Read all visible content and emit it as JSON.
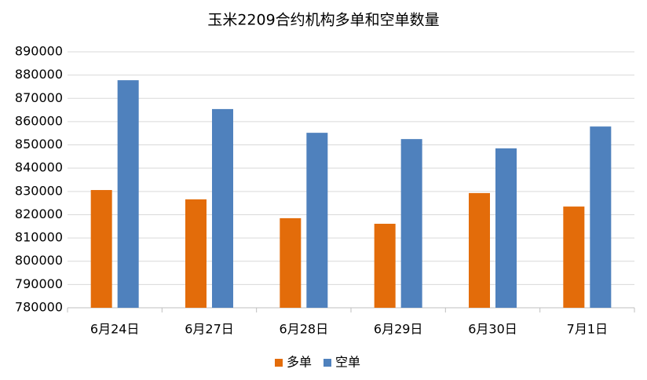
{
  "chart_data": {
    "type": "bar",
    "title": "玉米2209合约机构多单和空单数量",
    "categories": [
      "6月24日",
      "6月27日",
      "6月28日",
      "6月29日",
      "6月30日",
      "7月1日"
    ],
    "series": [
      {
        "name": "多单",
        "color": "#e36c0a",
        "values": [
          830600,
          826600,
          818500,
          816100,
          829300,
          823500
        ]
      },
      {
        "name": "空单",
        "color": "#4f81bd",
        "values": [
          877800,
          865400,
          855200,
          852500,
          848500,
          857900
        ]
      }
    ],
    "ylim": [
      780000,
      890000
    ],
    "yticks": [
      780000,
      790000,
      800000,
      810000,
      820000,
      830000,
      840000,
      850000,
      860000,
      870000,
      880000,
      890000
    ],
    "grid": true,
    "legend": "bottom"
  }
}
